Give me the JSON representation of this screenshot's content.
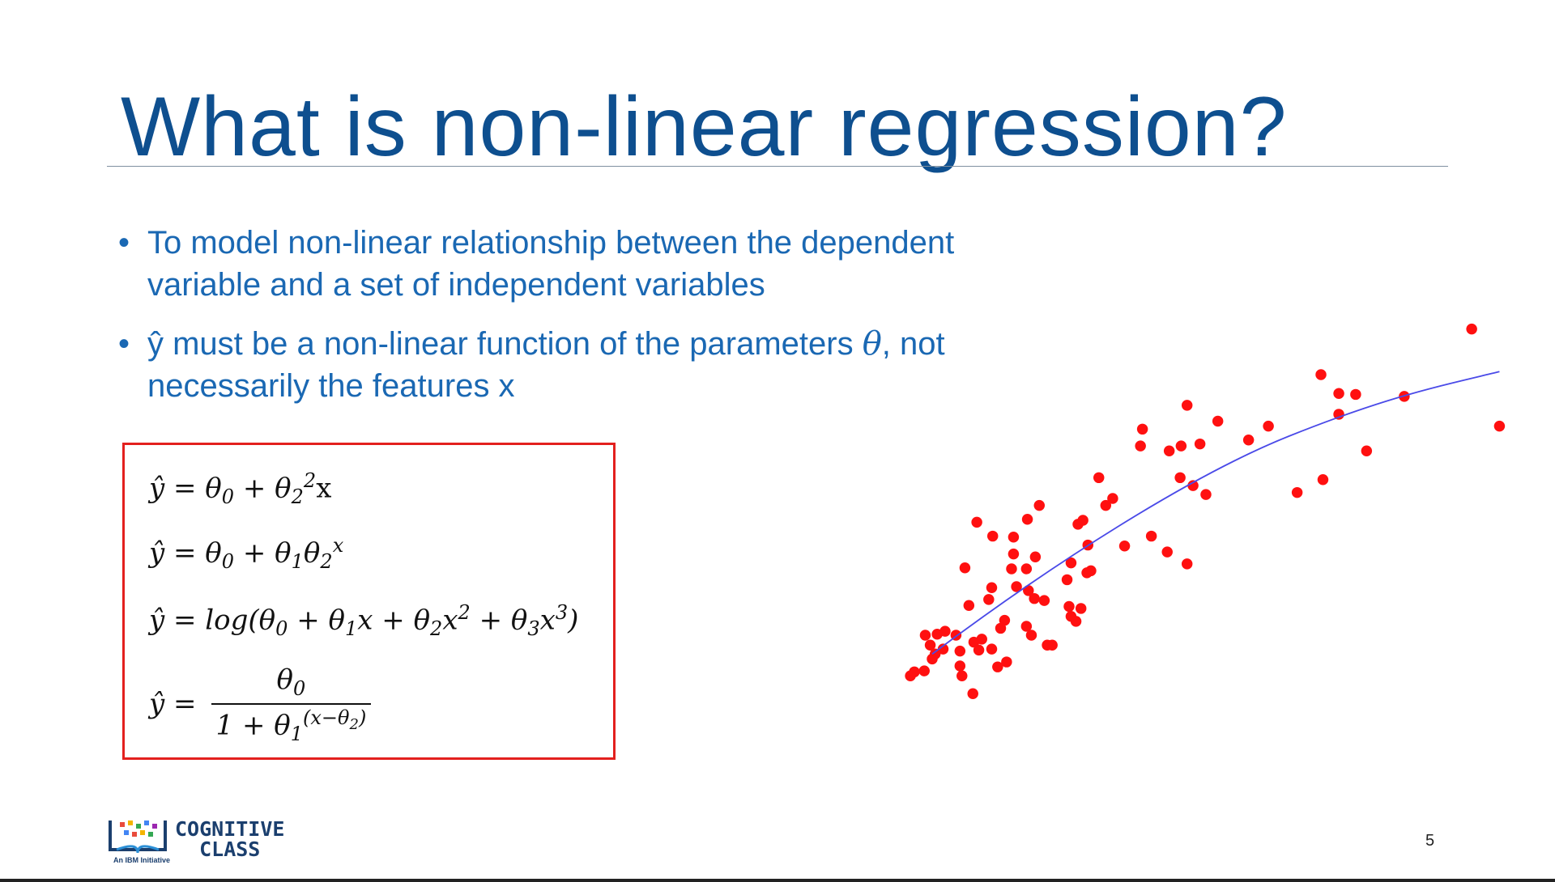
{
  "header": {
    "title": "What is non-linear regression?"
  },
  "bullets": [
    {
      "lines": [
        "To model non-linear relationship between the dependent",
        "variable and a set of independent variables"
      ]
    },
    {
      "lines": [
        [
          "ŷ must be a non-linear function of the parameters ",
          "θ",
          ", not"
        ],
        "necessarily the features x"
      ]
    }
  ],
  "formulas": [
    {
      "parts": [
        "ŷ = θ",
        "0",
        " + θ",
        "2",
        "2",
        "x"
      ]
    },
    {
      "parts": [
        "ŷ = θ",
        "0",
        " + θ",
        "1",
        "θ",
        "2",
        "x"
      ]
    },
    {
      "parts": [
        "ŷ = log(θ",
        "0",
        " + θ",
        "1",
        "x + θ",
        "2",
        "x",
        "2",
        " +  θ",
        "3",
        "x",
        "3",
        ")"
      ]
    },
    {
      "lhs": "ŷ =",
      "numerator": [
        "θ",
        "0"
      ],
      "denominator": [
        "1 + θ",
        "1",
        "(x−θ",
        "2",
        ")"
      ]
    }
  ],
  "footer": {
    "logo": {
      "line1": "COGNITIVE",
      "line2": "CLASS",
      "tagline": "An IBM Initiative"
    },
    "page_number": 5
  }
}
